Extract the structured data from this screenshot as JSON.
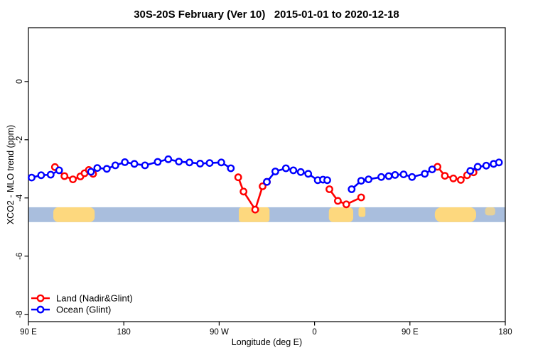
{
  "chart_data": {
    "type": "line",
    "title": "30S-20S February (Ver 10)   2015-01-01 to 2020-12-18",
    "xlabel": "Longitude (deg E)",
    "ylabel": "XCO2 - MLO trend (ppm)",
    "xlim": [
      90,
      540
    ],
    "ylim": [
      -8.25,
      1.85
    ],
    "grid": false,
    "xticks": [
      {
        "value": 90,
        "label": "90 E"
      },
      {
        "value": 180,
        "label": "180"
      },
      {
        "value": 270,
        "label": "90 W"
      },
      {
        "value": 360,
        "label": "0"
      },
      {
        "value": 450,
        "label": "90 E"
      },
      {
        "value": 540,
        "label": "180"
      }
    ],
    "yticks": [
      {
        "value": 0,
        "label": "0"
      },
      {
        "value": -2,
        "label": "-2"
      },
      {
        "value": -4,
        "label": "-4"
      },
      {
        "value": -6,
        "label": "-6"
      },
      {
        "value": -8,
        "label": "-8"
      }
    ],
    "map_band": {
      "value_top": -4.32,
      "value_bottom": -4.83,
      "ocean_color": "#a9bedd",
      "land_color": "#fdd87e",
      "land_patches": [
        {
          "lon0": 113.5,
          "lon1": 152.5,
          "frac_top": 0,
          "frac_bottom": 1,
          "r": 7,
          "light": false
        },
        {
          "lon0": 288.5,
          "lon1": 317.5,
          "frac_top": 0,
          "frac_bottom": 1,
          "r": 4,
          "light": false
        },
        {
          "lon0": 373.5,
          "lon1": 396.5,
          "frac_top": 0,
          "frac_bottom": 1,
          "r": 6,
          "light": false
        },
        {
          "lon0": 401.5,
          "lon1": 408.0,
          "frac_top": 0,
          "frac_bottom": 0.65,
          "r": 3,
          "light": false
        },
        {
          "lon0": 473.5,
          "lon1": 512.5,
          "frac_top": 0,
          "frac_bottom": 1,
          "r": 9,
          "light": false
        },
        {
          "lon0": 521.0,
          "lon1": 530.5,
          "frac_top": 0,
          "frac_bottom": 0.55,
          "r": 4,
          "light": true
        }
      ]
    },
    "series": [
      {
        "name": "Land (Nadir&Glint)",
        "color": "#ff0000",
        "segments": [
          [
            [
              115,
              -2.94
            ],
            [
              124,
              -3.25
            ],
            [
              132,
              -3.36
            ],
            [
              139,
              -3.26
            ],
            [
              143,
              -3.15
            ],
            [
              147,
              -3.04
            ],
            [
              151,
              -3.17
            ]
          ],
          [
            [
              288,
              -3.29
            ],
            [
              293,
              -3.78
            ],
            [
              304,
              -4.4
            ],
            [
              311,
              -3.6
            ],
            [
              315,
              -3.45
            ]
          ],
          [
            [
              374,
              -3.7
            ],
            [
              382,
              -4.1
            ],
            [
              390,
              -4.22
            ],
            [
              404,
              -3.98
            ]
          ],
          [
            [
              476,
              -2.93
            ],
            [
              483,
              -3.24
            ],
            [
              491,
              -3.33
            ],
            [
              498,
              -3.38
            ],
            [
              504,
              -3.22
            ],
            [
              510,
              -3.12
            ]
          ]
        ]
      },
      {
        "name": "Ocean (Glint)",
        "color": "#0000ff",
        "segments": [
          [
            [
              93,
              -3.3
            ],
            [
              102,
              -3.22
            ],
            [
              111,
              -3.2
            ],
            [
              119,
              -3.05
            ]
          ],
          [
            [
              149,
              -3.1
            ],
            [
              155,
              -2.97
            ],
            [
              164,
              -3.0
            ],
            [
              172,
              -2.88
            ],
            [
              181,
              -2.77
            ],
            [
              190,
              -2.83
            ],
            [
              200,
              -2.88
            ],
            [
              212,
              -2.76
            ],
            [
              222,
              -2.67
            ],
            [
              232,
              -2.75
            ],
            [
              242,
              -2.78
            ],
            [
              252,
              -2.82
            ],
            [
              261,
              -2.8
            ],
            [
              272,
              -2.78
            ],
            [
              281,
              -2.98
            ]
          ],
          [
            [
              315,
              -3.45
            ],
            [
              323,
              -3.09
            ],
            [
              333,
              -2.98
            ],
            [
              340,
              -3.05
            ],
            [
              347,
              -3.11
            ],
            [
              354,
              -3.17
            ],
            [
              363,
              -3.39
            ],
            [
              368,
              -3.37
            ],
            [
              372,
              -3.39
            ]
          ],
          [
            [
              395,
              -3.7
            ],
            [
              404,
              -3.41
            ],
            [
              411,
              -3.36
            ],
            [
              423,
              -3.28
            ],
            [
              430,
              -3.25
            ],
            [
              436,
              -3.21
            ],
            [
              444,
              -3.19
            ],
            [
              452,
              -3.28
            ],
            [
              464,
              -3.17
            ],
            [
              471,
              -3.02
            ]
          ],
          [
            [
              507,
              -3.07
            ],
            [
              514,
              -2.93
            ],
            [
              522,
              -2.89
            ],
            [
              529,
              -2.83
            ],
            [
              534,
              -2.78
            ]
          ]
        ]
      }
    ],
    "legend": {
      "position": "bottom-left"
    }
  }
}
